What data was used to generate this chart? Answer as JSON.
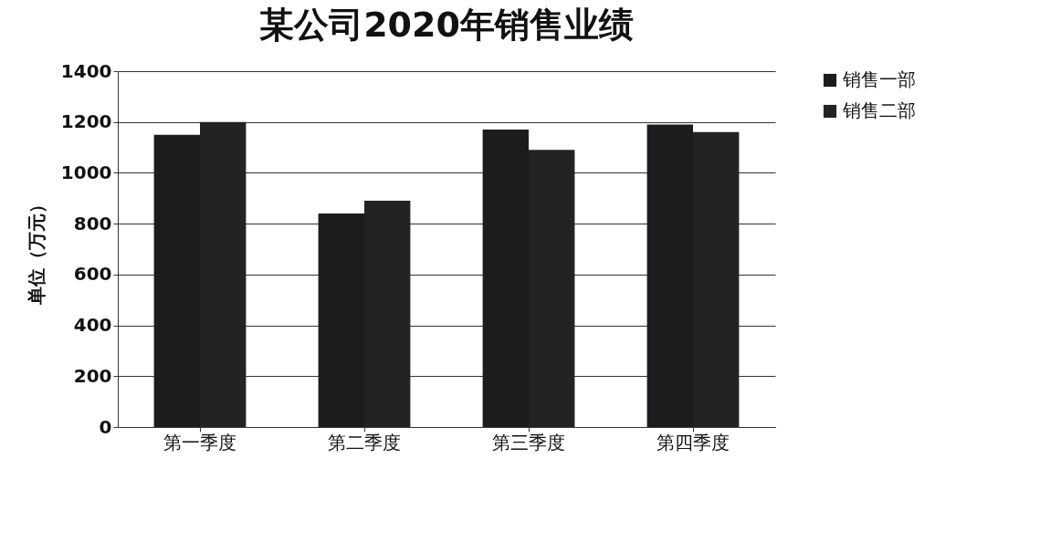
{
  "chart_data": {
    "type": "bar",
    "title": "某公司2020年销售业绩",
    "ylabel": "单位（万元）",
    "categories": [
      "第一季度",
      "第二季度",
      "第三季度",
      "第四季度"
    ],
    "series": [
      {
        "name": "销售一部",
        "color": "#1c1c1e",
        "values": [
          1150,
          840,
          1170,
          1190
        ]
      },
      {
        "name": "销售二部",
        "color": "#232325",
        "values": [
          1200,
          890,
          1090,
          1160
        ]
      }
    ],
    "ylim": [
      0,
      1400
    ],
    "yticks": [
      0,
      200,
      400,
      600,
      800,
      1000,
      1200,
      1400
    ],
    "grid": "y",
    "legend": "right"
  }
}
